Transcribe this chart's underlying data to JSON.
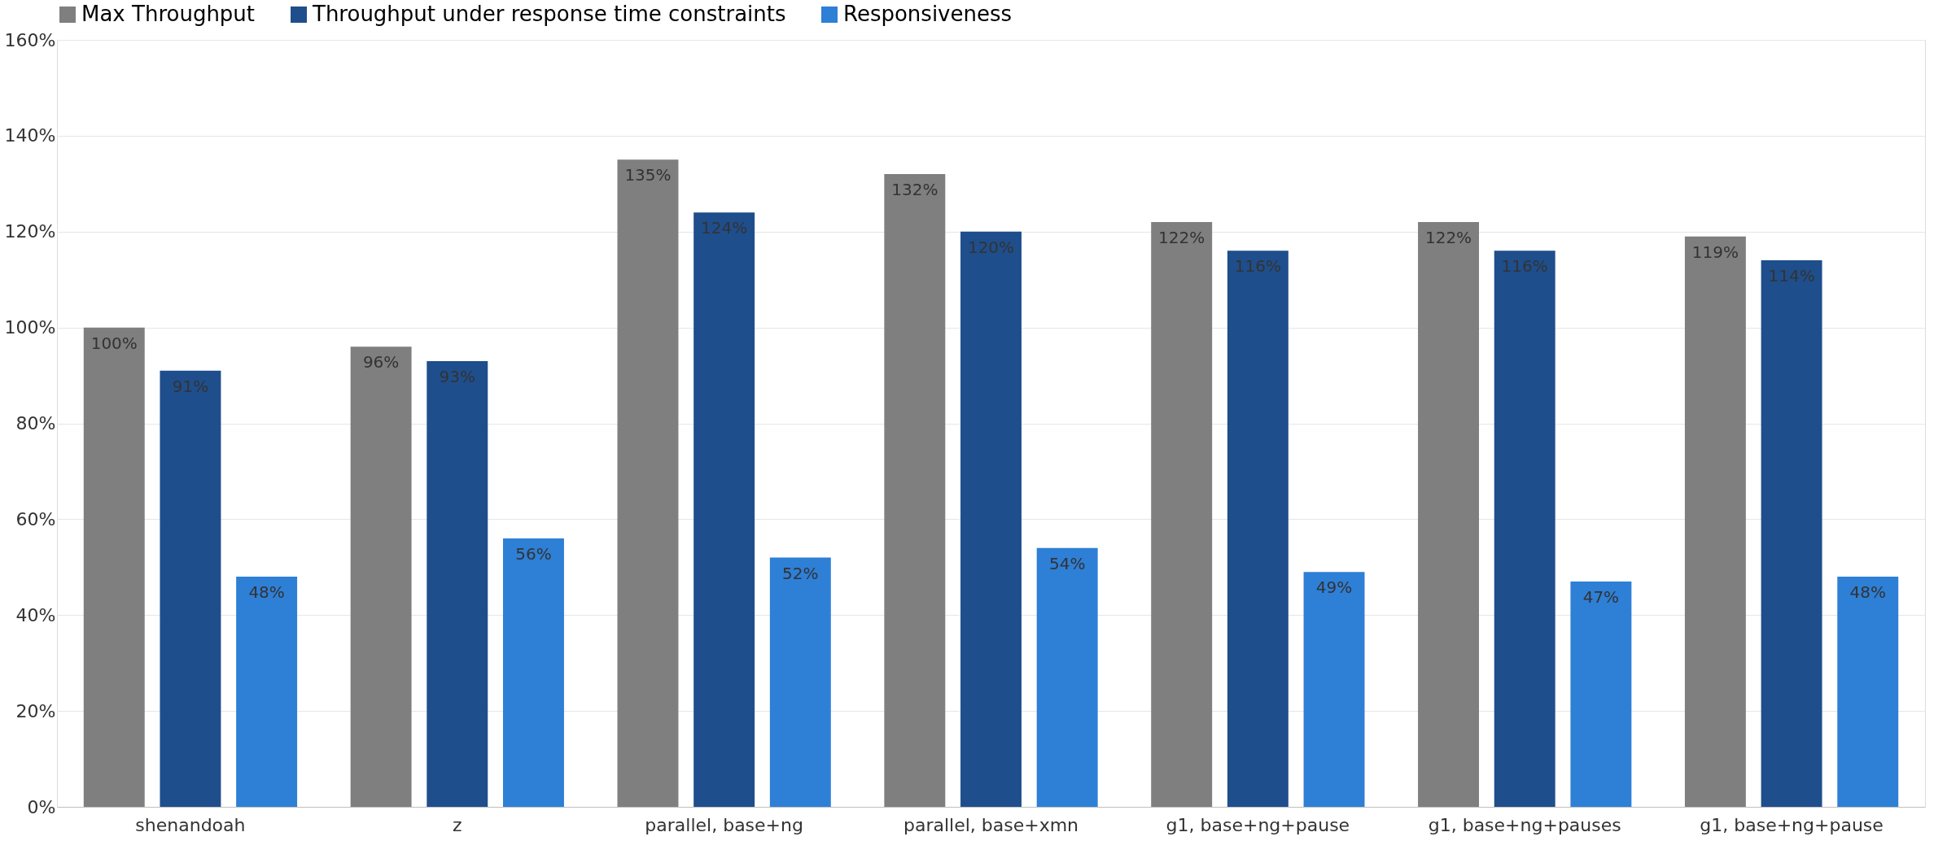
{
  "chart_data": {
    "type": "bar",
    "categories": [
      "shenandoah",
      "z",
      "parallel, base+ng",
      "parallel, base+xmn",
      "g1, base+ng+pause",
      "g1, base+ng+pauses",
      "g1, base+ng+pause"
    ],
    "series": [
      {
        "name": "Max Throughput",
        "color": "#7f7f7f",
        "values": [
          100,
          96,
          135,
          132,
          122,
          122,
          119
        ],
        "value_labels": [
          "100%",
          "96%",
          "135%",
          "132%",
          "122%",
          "122%",
          "119%"
        ]
      },
      {
        "name": "Throughput under response time constraints",
        "color": "#1f4e8c",
        "values": [
          91,
          93,
          124,
          120,
          116,
          116,
          114
        ],
        "value_labels": [
          "91%",
          "93%",
          "124%",
          "120%",
          "116%",
          "116%",
          "114%"
        ]
      },
      {
        "name": "Responsiveness",
        "color": "#2e7fd6",
        "values": [
          48,
          56,
          52,
          54,
          49,
          47,
          48
        ],
        "value_labels": [
          "48%",
          "56%",
          "52%",
          "54%",
          "49%",
          "47%",
          "48%"
        ]
      }
    ],
    "ylim": [
      0,
      160
    ],
    "yticks": [
      {
        "value": 0,
        "label": "0%"
      },
      {
        "value": 20,
        "label": "20%"
      },
      {
        "value": 40,
        "label": "40%"
      },
      {
        "value": 60,
        "label": "60%"
      },
      {
        "value": 80,
        "label": "80%"
      },
      {
        "value": 100,
        "label": "100%"
      },
      {
        "value": 120,
        "label": "120%"
      },
      {
        "value": 140,
        "label": "140%"
      },
      {
        "value": 160,
        "label": "160%"
      }
    ],
    "grid": "y",
    "legend": "top"
  }
}
